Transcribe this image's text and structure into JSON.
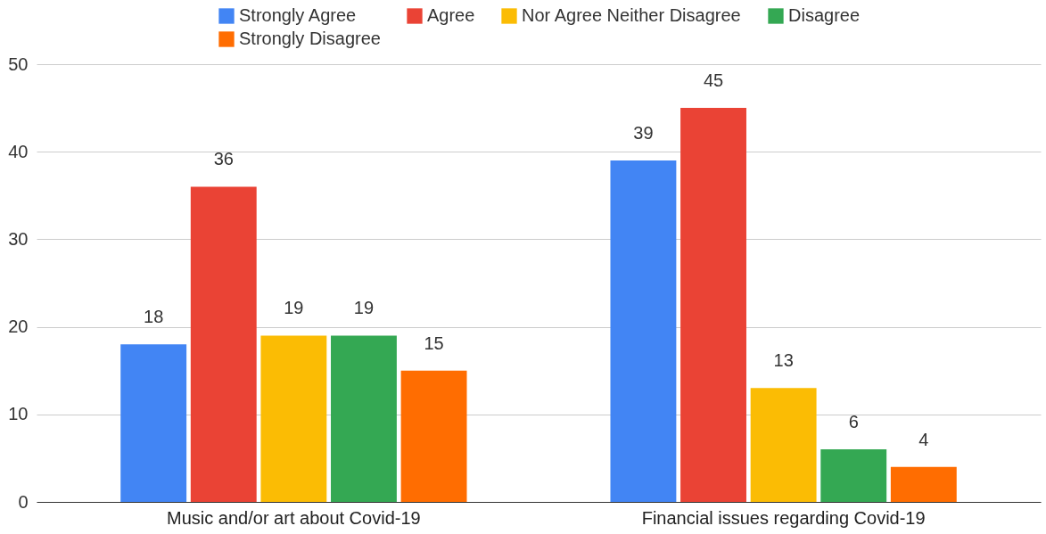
{
  "chart_data": {
    "type": "bar",
    "categories": [
      "Music and/or art about Covid-19",
      "Financial issues regarding Covid-19"
    ],
    "series": [
      {
        "name": "Strongly Agree",
        "color": "#4285f4",
        "values": [
          18,
          39
        ]
      },
      {
        "name": "Agree",
        "color": "#ea4335",
        "values": [
          36,
          45
        ]
      },
      {
        "name": "Nor Agree Neither Disagree",
        "color": "#fbbc04",
        "values": [
          19,
          13
        ]
      },
      {
        "name": "Disagree",
        "color": "#34a853",
        "values": [
          19,
          6
        ]
      },
      {
        "name": "Strongly Disagree",
        "color": "#ff6d01",
        "values": [
          15,
          4
        ]
      }
    ],
    "ylim": [
      0,
      50
    ],
    "yticks": [
      0,
      10,
      20,
      30,
      40,
      50
    ],
    "grid": "y",
    "legend": "top",
    "data_labels": true
  }
}
